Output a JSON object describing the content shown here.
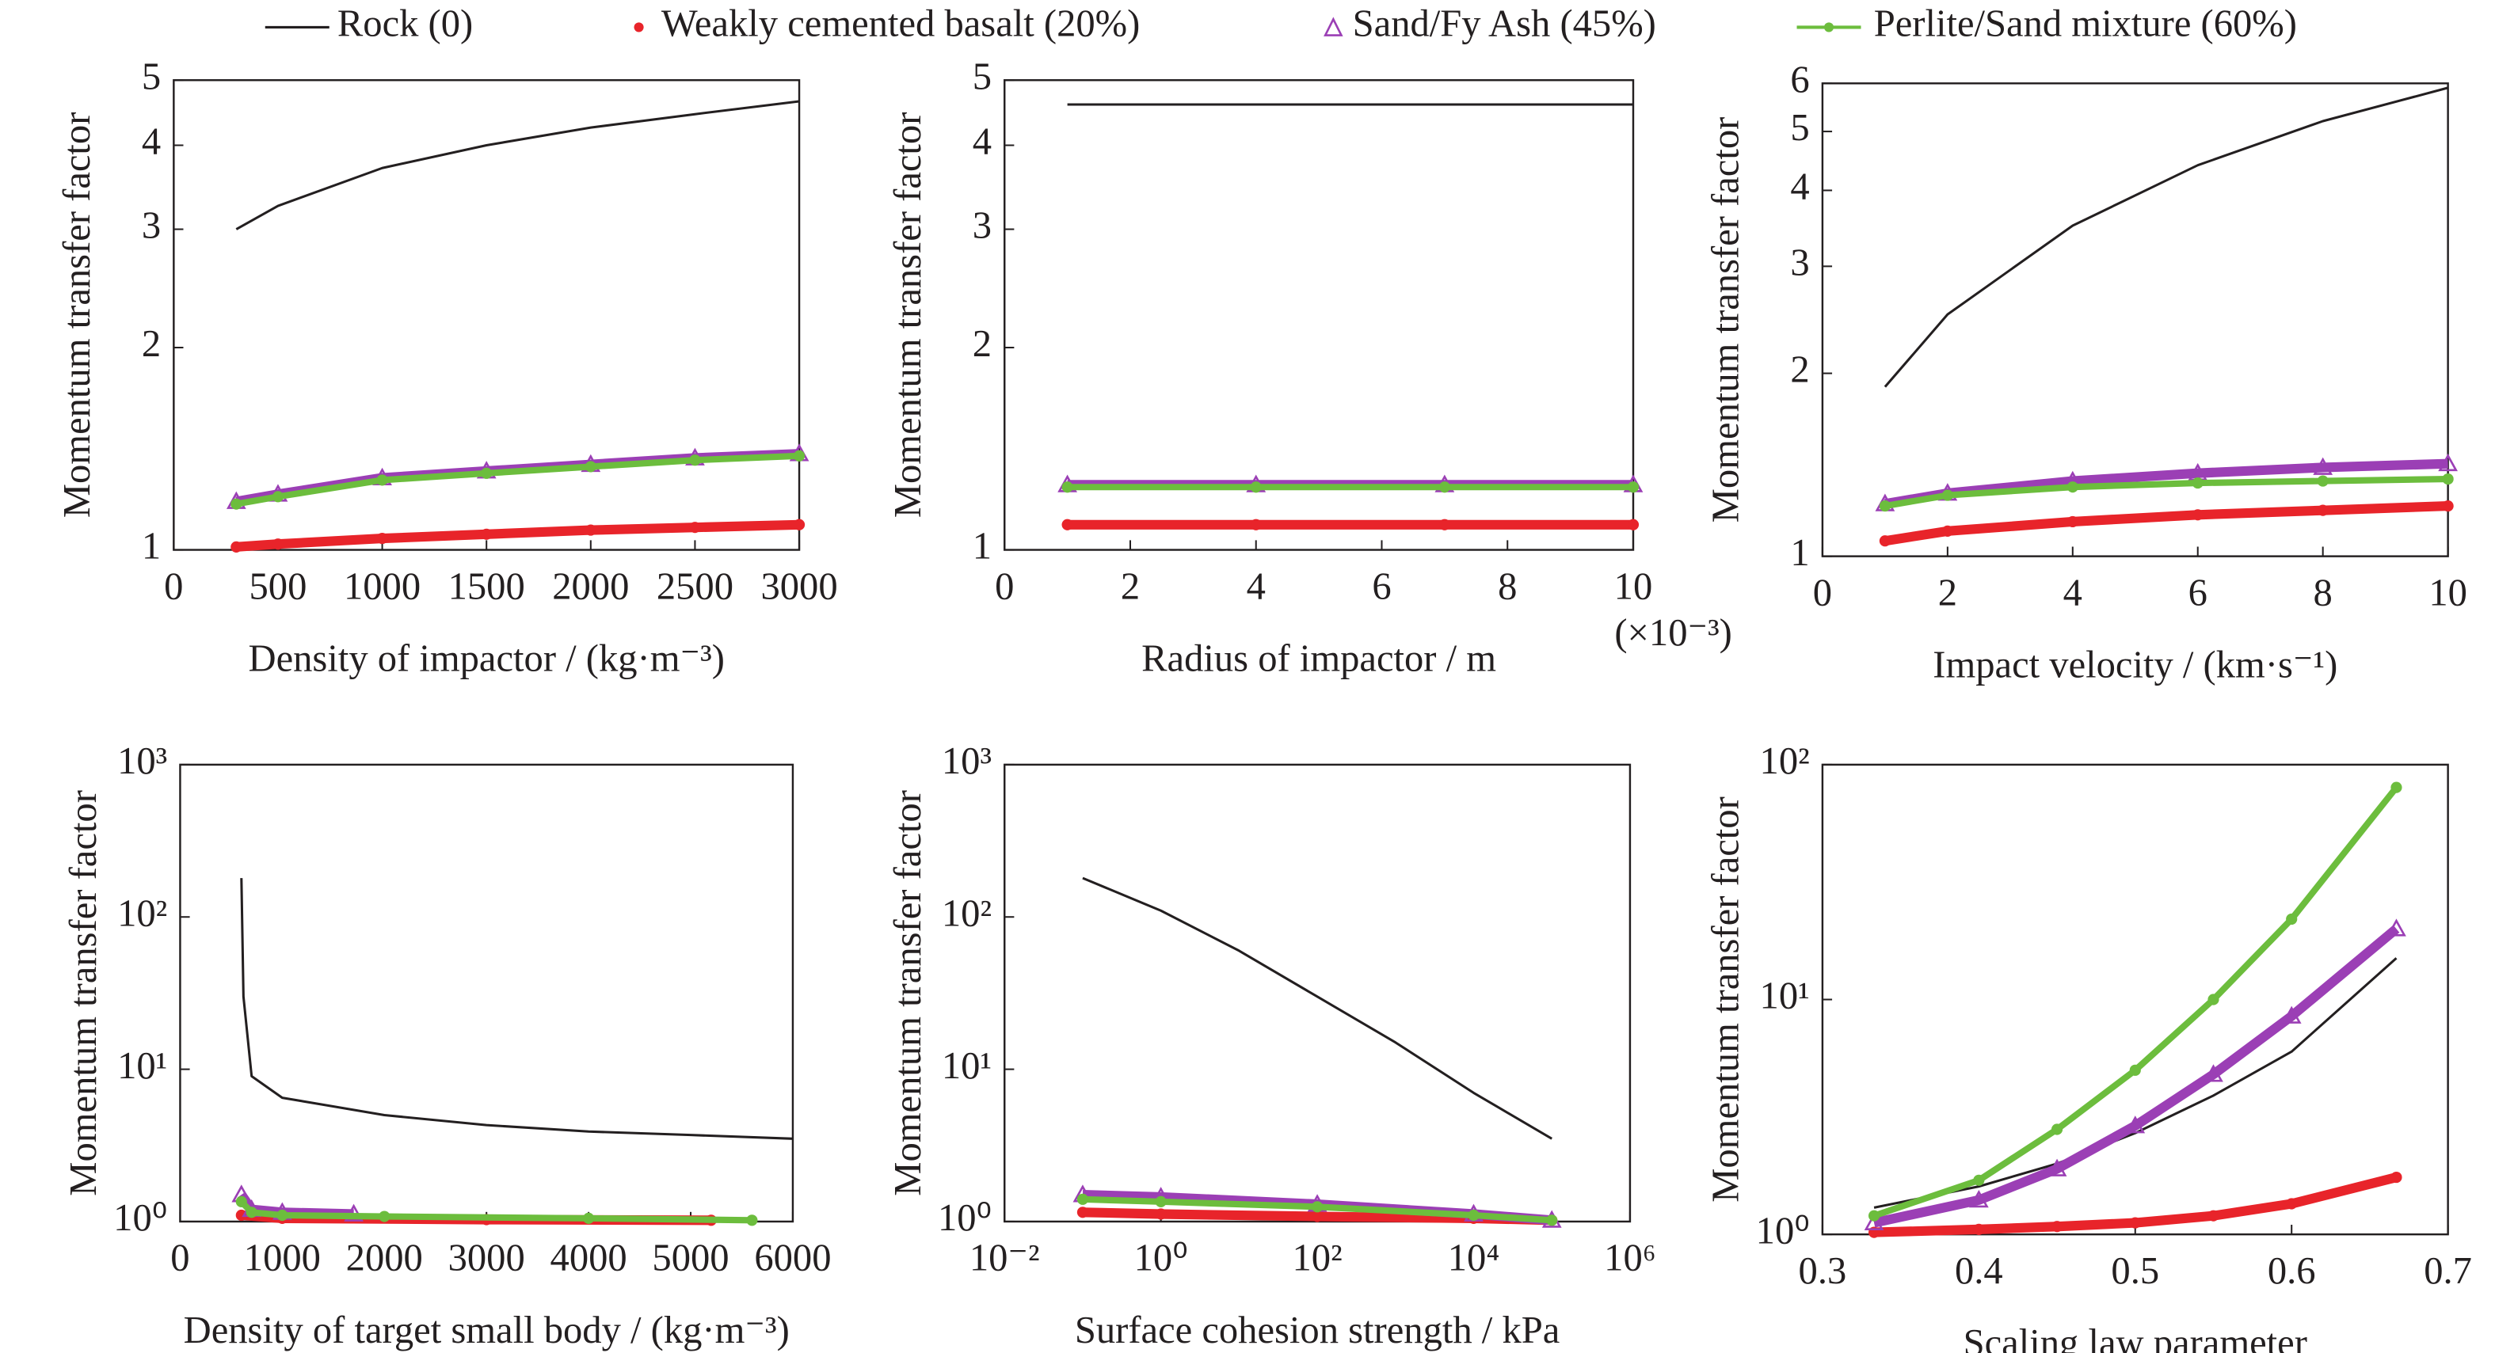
{
  "legend": [
    {
      "name": "Rock (0)",
      "color": "#231f20"
    },
    {
      "name": "Weakly cemented basalt (20%)",
      "color": "#e8242a"
    },
    {
      "name": "Sand/Fy Ash (45%)",
      "color": "#9b3fb5"
    },
    {
      "name": "Perlite/Sand mixture (60%)",
      "color": "#6cbd3d"
    }
  ],
  "chart_data": [
    {
      "type": "line",
      "xlabel": "Density of impactor / (kg·m⁻³)",
      "ylabel": "Momentum transfer factor",
      "ylog": true,
      "xlim": [
        0,
        3000
      ],
      "xticks": [
        0,
        500,
        1000,
        1500,
        2000,
        2500,
        3000
      ],
      "ylim": [
        1,
        5
      ],
      "yticks": [
        1,
        2,
        3,
        4,
        5
      ],
      "x": [
        300,
        500,
        1000,
        1500,
        2000,
        2500,
        3000
      ],
      "series": [
        {
          "values": [
            3.0,
            3.25,
            3.7,
            4.0,
            4.25,
            4.45,
            4.65
          ]
        },
        {
          "values": [
            1.01,
            1.02,
            1.04,
            1.055,
            1.07,
            1.08,
            1.09
          ]
        },
        {
          "values": [
            1.18,
            1.21,
            1.28,
            1.31,
            1.34,
            1.37,
            1.39
          ]
        },
        {
          "values": [
            1.17,
            1.2,
            1.27,
            1.3,
            1.33,
            1.36,
            1.38
          ]
        }
      ]
    },
    {
      "type": "line",
      "xlabel": "Radius of impactor / m",
      "ylabel": "Momentum transfer factor",
      "annotation": "(×10⁻³)",
      "ylog": true,
      "xlim": [
        0,
        10
      ],
      "xticks": [
        0,
        2,
        4,
        6,
        8,
        10
      ],
      "ylim": [
        1,
        5
      ],
      "yticks": [
        1,
        2,
        3,
        4,
        5
      ],
      "x": [
        1,
        4,
        7,
        10
      ],
      "series": [
        {
          "values": [
            4.6,
            4.6,
            4.6,
            4.6
          ]
        },
        {
          "values": [
            1.09,
            1.09,
            1.09,
            1.09
          ]
        },
        {
          "values": [
            1.25,
            1.25,
            1.25,
            1.25
          ]
        },
        {
          "values": [
            1.24,
            1.24,
            1.24,
            1.24
          ]
        }
      ]
    },
    {
      "type": "line",
      "xlabel": "Impact velocity / (km·s⁻¹)",
      "ylabel": "Momentum transfer factor",
      "ylog": true,
      "xlim": [
        0,
        10
      ],
      "xticks": [
        0,
        2,
        4,
        6,
        8,
        10
      ],
      "ylim": [
        1,
        6
      ],
      "yticks": [
        1,
        2,
        3,
        4,
        5,
        6
      ],
      "x": [
        1,
        2,
        4,
        6,
        8,
        10
      ],
      "series": [
        {
          "values": [
            1.9,
            2.5,
            3.5,
            4.4,
            5.2,
            5.9
          ]
        },
        {
          "values": [
            1.06,
            1.1,
            1.14,
            1.17,
            1.19,
            1.21
          ]
        },
        {
          "values": [
            1.22,
            1.27,
            1.33,
            1.37,
            1.4,
            1.42
          ]
        },
        {
          "values": [
            1.21,
            1.26,
            1.3,
            1.32,
            1.33,
            1.34
          ]
        }
      ]
    },
    {
      "type": "line",
      "xlabel": "Density of target small body / (kg·m⁻³)",
      "ylabel": "Momentum transfer factor",
      "ylog": true,
      "xlim": [
        0,
        6000
      ],
      "xticks": [
        0,
        1000,
        2000,
        3000,
        4000,
        5000,
        6000
      ],
      "ylim": [
        1,
        1000
      ],
      "yticks": [
        {
          "value": 1,
          "label": "10⁰"
        },
        {
          "value": 10,
          "label": "10¹"
        },
        {
          "value": 100,
          "label": "10²"
        },
        {
          "value": 1000,
          "label": "10³"
        }
      ],
      "series": [
        {
          "x": [
            600,
            620,
            700,
            1000,
            2000,
            3000,
            4000,
            5000,
            6000
          ],
          "values": [
            180,
            30,
            9,
            6.5,
            5,
            4.3,
            3.9,
            3.7,
            3.5
          ]
        },
        {
          "x": [
            600,
            1000,
            3000,
            5200
          ],
          "values": [
            1.1,
            1.05,
            1.03,
            1.02
          ]
        },
        {
          "x": [
            600,
            700,
            1000,
            1700
          ],
          "values": [
            1.5,
            1.2,
            1.15,
            1.12
          ]
        },
        {
          "x": [
            600,
            700,
            1000,
            2000,
            4000,
            5600
          ],
          "values": [
            1.35,
            1.15,
            1.1,
            1.08,
            1.05,
            1.02
          ]
        }
      ]
    },
    {
      "type": "line",
      "xlabel": "Surface cohesion strength / kPa",
      "ylabel": "Momentum transfer factor",
      "ylog": true,
      "xlog": true,
      "xlim": [
        0.01,
        1000000
      ],
      "xticks": [
        {
          "value": 0.01,
          "label": "10⁻²"
        },
        {
          "value": 1,
          "label": "10⁰"
        },
        {
          "value": 100,
          "label": "10²"
        },
        {
          "value": 10000,
          "label": "10⁴"
        },
        {
          "value": 1000000,
          "label": "10⁶"
        }
      ],
      "ylim": [
        1,
        1000
      ],
      "yticks": [
        {
          "value": 1,
          "label": "10⁰"
        },
        {
          "value": 10,
          "label": "10¹"
        },
        {
          "value": 100,
          "label": "10²"
        },
        {
          "value": 1000,
          "label": "10³"
        }
      ],
      "series": [
        {
          "x": [
            0.1,
            1,
            10,
            100,
            1000,
            10000,
            100000
          ],
          "values": [
            180,
            110,
            60,
            30,
            15,
            7,
            3.5
          ]
        },
        {
          "x": [
            0.1,
            1,
            100,
            10000,
            100000
          ],
          "values": [
            1.15,
            1.12,
            1.08,
            1.05,
            1.02
          ]
        },
        {
          "x": [
            0.1,
            1,
            100,
            10000,
            100000
          ],
          "values": [
            1.5,
            1.45,
            1.3,
            1.12,
            1.02
          ]
        },
        {
          "x": [
            0.1,
            1,
            100,
            10000,
            100000
          ],
          "values": [
            1.4,
            1.35,
            1.25,
            1.1,
            1.02
          ]
        }
      ]
    },
    {
      "type": "line",
      "xlabel": "Scaling law parameter",
      "ylabel": "Momentum transfer factor",
      "ylog": true,
      "xlim": [
        0.3,
        0.7
      ],
      "xticks": [
        0.3,
        0.4,
        0.5,
        0.6,
        0.7
      ],
      "ylim": [
        1,
        100
      ],
      "yticks": [
        {
          "value": 1,
          "label": "10⁰"
        },
        {
          "value": 10,
          "label": "10¹"
        },
        {
          "value": 100,
          "label": "10²"
        }
      ],
      "x": [
        0.333,
        0.4,
        0.45,
        0.5,
        0.55,
        0.6,
        0.667
      ],
      "series": [
        {
          "values": [
            1.3,
            1.6,
            2.0,
            2.7,
            3.9,
            6.0,
            15
          ]
        },
        {
          "values": [
            1.02,
            1.05,
            1.08,
            1.12,
            1.2,
            1.35,
            1.75
          ]
        },
        {
          "values": [
            1.12,
            1.4,
            1.9,
            2.9,
            4.8,
            8.5,
            20
          ]
        },
        {
          "values": [
            1.2,
            1.7,
            2.8,
            5,
            10,
            22,
            80
          ]
        }
      ]
    }
  ]
}
